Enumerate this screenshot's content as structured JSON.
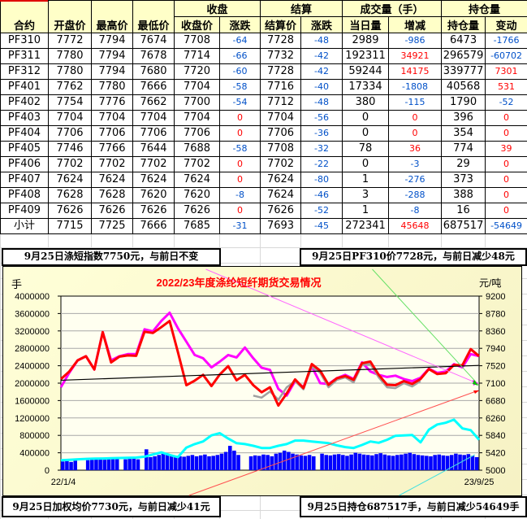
{
  "table": {
    "group_headers": [
      "收盘",
      "结算",
      "成交量（手）",
      "持仓量"
    ],
    "headers": [
      "合约",
      "开盘价",
      "最高价",
      "最低价",
      "收盘价",
      "涨跌",
      "结算价",
      "涨跌",
      "当日量",
      "增减",
      "持仓量",
      "变动"
    ],
    "rows": [
      [
        "PF310",
        "7772",
        "7794",
        "7674",
        "7708",
        "-64",
        "7728",
        "-48",
        "2989",
        "-986",
        "6473",
        "-1766"
      ],
      [
        "PF311",
        "7780",
        "7794",
        "7678",
        "7714",
        "-66",
        "7732",
        "-42",
        "192311",
        "34921",
        "296579",
        "-60702"
      ],
      [
        "PF312",
        "7780",
        "7794",
        "7680",
        "7720",
        "-60",
        "7728",
        "-42",
        "59244",
        "14175",
        "339777",
        "7301"
      ],
      [
        "PF401",
        "7762",
        "7780",
        "7666",
        "7704",
        "-58",
        "7716",
        "-40",
        "17334",
        "-1808",
        "40568",
        "531"
      ],
      [
        "PF402",
        "7754",
        "7776",
        "7662",
        "7700",
        "-54",
        "7712",
        "-48",
        "380",
        "-115",
        "1790",
        "-52"
      ],
      [
        "PF403",
        "7704",
        "7704",
        "7704",
        "7704",
        "0",
        "7704",
        "-56",
        "0",
        "0",
        "396",
        "0"
      ],
      [
        "PF404",
        "7706",
        "7706",
        "7706",
        "7706",
        "0",
        "7706",
        "-36",
        "0",
        "0",
        "354",
        "0"
      ],
      [
        "PF405",
        "7746",
        "7766",
        "7644",
        "7688",
        "-58",
        "7708",
        "-32",
        "78",
        "36",
        "774",
        "39"
      ],
      [
        "PF406",
        "7702",
        "7702",
        "7702",
        "7702",
        "0",
        "7702",
        "-22",
        "0",
        "-3",
        "29",
        "0"
      ],
      [
        "PF407",
        "7624",
        "7624",
        "7624",
        "7624",
        "0",
        "7624",
        "-80",
        "1",
        "-276",
        "373",
        "0"
      ],
      [
        "PF408",
        "7628",
        "7628",
        "7620",
        "7620",
        "-8",
        "7624",
        "-46",
        "3",
        "-288",
        "388",
        "0"
      ],
      [
        "PF409",
        "7626",
        "7626",
        "7626",
        "7626",
        "0",
        "7626",
        "-52",
        "1",
        "-8",
        "16",
        "0"
      ],
      [
        "小计",
        "7715",
        "7725",
        "7666",
        "7685",
        "-31",
        "7693",
        "-45",
        "272341",
        "45648",
        "687517",
        "-54649"
      ]
    ]
  },
  "notes": {
    "index": "9月25日涤短指数7750元，与前日不变",
    "pf310": "9月25日PF310价7728元，与前日减少48元",
    "weighted": "9月25日加权均价7730元，与前日减少41元",
    "open_interest": "9月25日持仓687517手，与前日减少54649手"
  },
  "colors": {
    "negative": "#0050c8",
    "positive": "#ff0000",
    "header_bg": "#ffffc8"
  },
  "chart_data": {
    "type": "line",
    "title": "2022/23年度涤纶短纤期货交易情况",
    "y_left_label": "手",
    "y_right_label": "元/吨",
    "x_start": "22/1/4",
    "x_end": "23/9/25",
    "y_left_range": [
      0,
      4000000
    ],
    "y_left_ticks": [
      "4000000",
      "3600000",
      "3200000",
      "2800000",
      "2400000",
      "2000000",
      "1600000",
      "1200000",
      "800000",
      "400000",
      "0"
    ],
    "y_right_range": [
      5000,
      9200
    ],
    "y_right_ticks": [
      "9200",
      "8780",
      "8360",
      "7940",
      "7520",
      "7100",
      "6680",
      "6260",
      "5840",
      "5420",
      "5000"
    ],
    "grid": true,
    "series": [
      {
        "axis": "right",
        "color": "#ff00ff",
        "values": [
          7002,
          7350,
          7650,
          7750,
          7430,
          8330,
          7650,
          7750,
          7800,
          7800,
          8400,
          8350,
          8600,
          8800,
          8420,
          8100,
          7780,
          7700,
          7480,
          7620,
          7780,
          7720,
          7960,
          7700,
          7470,
          7420,
          6960,
          6800,
          7150,
          7000,
          7500,
          7100,
          7080,
          7220,
          7300,
          7200,
          7600,
          7380,
          7300,
          7250,
          7280,
          7200,
          7150,
          7230,
          7450,
          7350,
          7380,
          7560,
          7480,
          7800,
          7752
        ]
      },
      {
        "axis": "right",
        "color": "#a0a0a0",
        "values": [
          null,
          null,
          null,
          null,
          null,
          null,
          null,
          null,
          null,
          null,
          null,
          null,
          null,
          null,
          null,
          null,
          null,
          null,
          null,
          null,
          null,
          null,
          null,
          6800,
          6750,
          6900,
          6700,
          7000,
          7150,
          6950,
          7500,
          7350,
          7000,
          7180,
          7240,
          7120,
          7540,
          7560,
          7240,
          7000,
          6980,
          7100,
          7020,
          7150,
          null,
          null,
          null,
          null,
          null,
          null,
          null
        ]
      },
      {
        "axis": "right",
        "color": "#ff0000",
        "values": [
          7198,
          7380,
          7650,
          7750,
          7430,
          8330,
          7600,
          7740,
          7770,
          7760,
          8340,
          8310,
          8450,
          8600,
          7840,
          7050,
          7160,
          7300,
          7030,
          7310,
          7510,
          7170,
          7300,
          7050,
          6880,
          7000,
          6560,
          6850,
          7190,
          6980,
          7560,
          7400,
          7060,
          7220,
          7270,
          7180,
          7580,
          7620,
          7300,
          7060,
          7050,
          7150,
          7080,
          7200,
          7440,
          7320,
          7340,
          7540,
          7530,
          7920,
          7752
        ]
      },
      {
        "axis": "left",
        "color": "#00ffff",
        "values": [
          230000,
          240000,
          250000,
          260000,
          265000,
          270000,
          275000,
          280000,
          285000,
          290000,
          310000,
          360000,
          410000,
          350000,
          300000,
          520000,
          600000,
          660000,
          800000,
          850000,
          727000,
          620000,
          600000,
          560000,
          510000,
          510000,
          560000,
          600000,
          680000,
          680000,
          660000,
          640000,
          620000,
          570000,
          530000,
          510000,
          580000,
          660000,
          630000,
          700000,
          790000,
          800000,
          810000,
          640000,
          930000,
          1050000,
          1090000,
          1160000,
          960000,
          920000,
          700000
        ]
      }
    ],
    "bars": {
      "axis": "left",
      "color": "#0000ff",
      "values": [
        200000,
        210000,
        190000,
        220000,
        0,
        0,
        230000,
        240000,
        250000,
        260000,
        240000,
        250000,
        270000,
        260000,
        0,
        250000,
        260000,
        270000,
        250000,
        0,
        480000,
        300000,
        320000,
        350000,
        380000,
        360000,
        340000,
        330000,
        320000,
        310000,
        330000,
        350000,
        320000,
        340000,
        360000,
        320000,
        330000,
        350000,
        380000,
        420000,
        560000,
        450000,
        350000,
        0,
        0,
        320000,
        340000,
        330000,
        360000,
        350000,
        320000,
        380000,
        400000,
        450000,
        420000,
        380000,
        360000,
        340000,
        330000,
        350000,
        320000,
        0,
        380000,
        350000,
        340000,
        360000,
        370000,
        350000,
        330000,
        360000,
        400000,
        380000,
        360000,
        350000,
        340000,
        370000,
        390000,
        360000,
        340000,
        330000,
        350000,
        360000,
        380000,
        400000,
        370000,
        350000,
        340000,
        330000,
        320000,
        350000,
        360000,
        340000,
        330000,
        350000,
        380000,
        360000,
        350000,
        370000,
        330000,
        300000
      ]
    },
    "trend_line": {
      "color": "#000000",
      "start": 7170,
      "end": 7528
    }
  }
}
